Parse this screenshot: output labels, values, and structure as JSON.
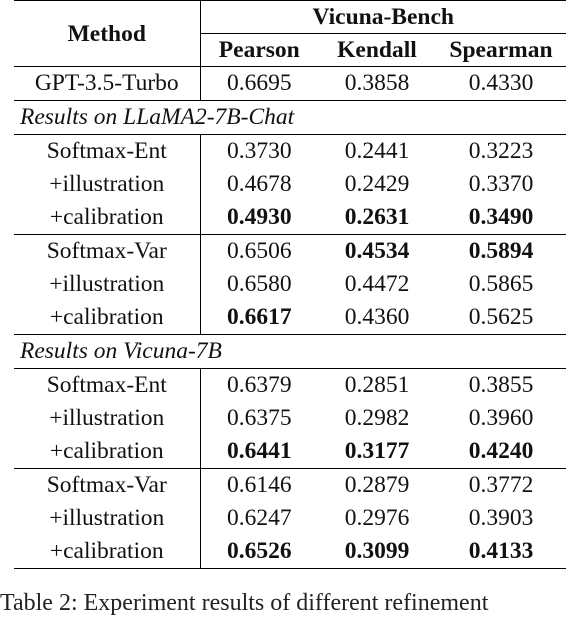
{
  "header": {
    "method": "Method",
    "bench": "Vicuna-Bench",
    "cols": [
      "Pearson",
      "Kendall",
      "Spearman"
    ]
  },
  "baseline": {
    "method": "GPT-3.5-Turbo",
    "values": [
      "0.6695",
      "0.3858",
      "0.4330"
    ]
  },
  "sections": [
    {
      "title": "Results on LLaMA2-7B-Chat",
      "groups": [
        {
          "rows": [
            {
              "method": "Softmax-Ent",
              "values": [
                "0.3730",
                "0.2441",
                "0.3223"
              ],
              "bold": [
                false,
                false,
                false
              ]
            },
            {
              "method": "+illustration",
              "values": [
                "0.4678",
                "0.2429",
                "0.3370"
              ],
              "bold": [
                false,
                false,
                false
              ]
            },
            {
              "method": "+calibration",
              "values": [
                "0.4930",
                "0.2631",
                "0.3490"
              ],
              "bold": [
                true,
                true,
                true
              ]
            }
          ]
        },
        {
          "rows": [
            {
              "method": "Softmax-Var",
              "values": [
                "0.6506",
                "0.4534",
                "0.5894"
              ],
              "bold": [
                false,
                true,
                true
              ]
            },
            {
              "method": "+illustration",
              "values": [
                "0.6580",
                "0.4472",
                "0.5865"
              ],
              "bold": [
                false,
                false,
                false
              ]
            },
            {
              "method": "+calibration",
              "values": [
                "0.6617",
                "0.4360",
                "0.5625"
              ],
              "bold": [
                true,
                false,
                false
              ]
            }
          ]
        }
      ]
    },
    {
      "title": "Results on Vicuna-7B",
      "groups": [
        {
          "rows": [
            {
              "method": "Softmax-Ent",
              "values": [
                "0.6379",
                "0.2851",
                "0.3855"
              ],
              "bold": [
                false,
                false,
                false
              ]
            },
            {
              "method": "+illustration",
              "values": [
                "0.6375",
                "0.2982",
                "0.3960"
              ],
              "bold": [
                false,
                false,
                false
              ]
            },
            {
              "method": "+calibration",
              "values": [
                "0.6441",
                "0.3177",
                "0.4240"
              ],
              "bold": [
                true,
                true,
                true
              ]
            }
          ]
        },
        {
          "rows": [
            {
              "method": "Softmax-Var",
              "values": [
                "0.6146",
                "0.2879",
                "0.3772"
              ],
              "bold": [
                false,
                false,
                false
              ]
            },
            {
              "method": "+illustration",
              "values": [
                "0.6247",
                "0.2976",
                "0.3903"
              ],
              "bold": [
                false,
                false,
                false
              ]
            },
            {
              "method": "+calibration",
              "values": [
                "0.6526",
                "0.3099",
                "0.4133"
              ],
              "bold": [
                true,
                true,
                true
              ]
            }
          ]
        }
      ]
    }
  ],
  "caption": "Table 2: Experiment results of different refinement"
}
